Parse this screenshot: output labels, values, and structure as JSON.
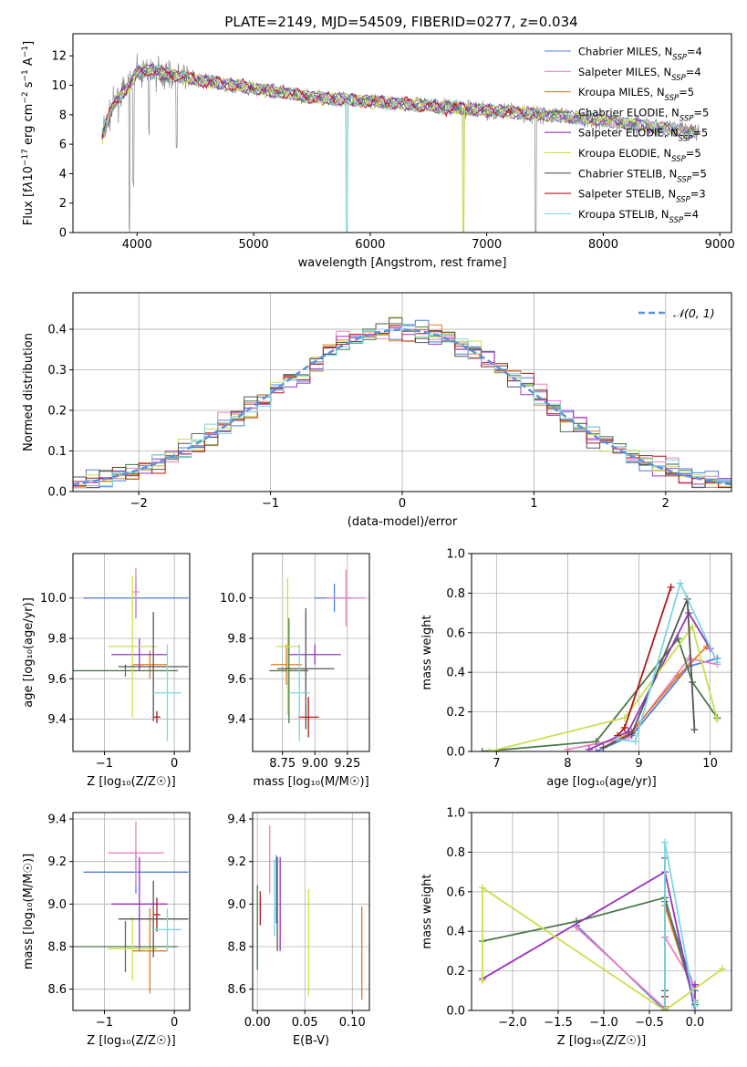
{
  "figure_title": "PLATE=2149, MJD=54509, FIBERID=0277, z=0.034",
  "colors": [
    "#4f7fe0",
    "#f07fbf",
    "#e07b2a",
    "#4a7a48",
    "#9a30c0",
    "#c9e04a",
    "#555555",
    "#b01616",
    "#79d8e2"
  ],
  "ssp_models": [
    {
      "name": "Chabrier MILES",
      "nssp": "4",
      "color": "#4f7fe0"
    },
    {
      "name": "Salpeter MILES",
      "nssp": "4",
      "color": "#f07fbf"
    },
    {
      "name": "Kroupa MILES",
      "nssp": "5",
      "color": "#e07b2a"
    },
    {
      "name": "Chabrier ELODIE",
      "nssp": "5",
      "color": "#4a7a48"
    },
    {
      "name": "Salpeter ELODIE",
      "nssp": "5",
      "color": "#9a30c0"
    },
    {
      "name": "Kroupa ELODIE",
      "nssp": "5",
      "color": "#c9e04a"
    },
    {
      "name": "Chabrier STELIB",
      "nssp": "5",
      "color": "#555555"
    },
    {
      "name": "Salpeter STELIB",
      "nssp": "3",
      "color": "#b01616"
    },
    {
      "name": "Kroupa STELIB",
      "nssp": "4",
      "color": "#79d8e2"
    }
  ],
  "chart_data": [
    {
      "id": "spectrum",
      "type": "line",
      "xlabel": "wavelength [Angstrom, rest frame]",
      "ylabel_html": "Flux [f<tspan font-style='italic'>λ</tspan>10<tspan baseline-shift='super' font-size='9'>−17</tspan> erg cm<tspan baseline-shift='super' font-size='9'>−2</tspan> s<tspan baseline-shift='super' font-size='9'>−1</tspan> A<tspan baseline-shift='super' font-size='9'>−1</tspan>]",
      "xlim": [
        3450,
        9100
      ],
      "ylim": [
        0,
        13.5
      ],
      "xticks": [
        4000,
        5000,
        6000,
        7000,
        8000,
        9000
      ],
      "yticks": [
        0,
        2,
        4,
        6,
        8,
        10,
        12
      ],
      "grid": false,
      "legend": "top-right",
      "continuum": {
        "x": [
          3700,
          3800,
          3900,
          4000,
          4100,
          4300,
          4500,
          5000,
          5500,
          6000,
          6500,
          7000,
          7500,
          8000,
          8500,
          8800
        ],
        "y": [
          6.5,
          8.8,
          9.6,
          10.9,
          11.0,
          10.7,
          10.4,
          9.8,
          9.2,
          8.9,
          8.6,
          8.3,
          8.0,
          7.6,
          7.1,
          6.8
        ]
      },
      "absorption_lines": [
        {
          "x": 3934,
          "y": 0
        },
        {
          "x": 3968,
          "y": 3.1
        },
        {
          "x": 4102,
          "y": 6.6
        },
        {
          "x": 4340,
          "y": 5.7
        },
        {
          "x": 5800,
          "y": 0
        },
        {
          "x": 6800,
          "y": 0
        },
        {
          "x": 7420,
          "y": 0
        }
      ]
    },
    {
      "id": "residuals",
      "type": "histogram",
      "xlabel": "(data-model)/error",
      "ylabel": "Normed distribution",
      "xlim": [
        -2.5,
        2.5
      ],
      "ylim": [
        0,
        0.49
      ],
      "xticks": [
        -2,
        -1,
        0,
        1,
        2
      ],
      "yticks": [
        0.0,
        0.1,
        0.2,
        0.3,
        0.4
      ],
      "grid": true,
      "legend": "top-right",
      "reference_curve": "N(0,1)",
      "bin_width": 0.1
    },
    {
      "id": "age_vs_Z",
      "type": "scatter",
      "xlabel": "Z [log₁₀(Z/Z☉)]",
      "ylabel": "age  [log₁₀(age/yr)]",
      "xlim": [
        -1.45,
        0.22
      ],
      "ylim": [
        9.24,
        10.22
      ],
      "xticks": [
        -1,
        0
      ],
      "yticks": [
        9.4,
        9.6,
        9.8,
        10.0
      ],
      "grid": true,
      "points": [
        {
          "x": -0.55,
          "y": 10.0,
          "xerr": 0.75,
          "yerr": 0.1,
          "color": "#4f7fe0"
        },
        {
          "x": -0.55,
          "y": 10.03,
          "xerr": 0.05,
          "yerr": 0.12,
          "color": "#f07fbf"
        },
        {
          "x": -0.35,
          "y": 9.67,
          "xerr": 0.25,
          "yerr": 0.07,
          "color": "#e07b2a"
        },
        {
          "x": -0.7,
          "y": 9.64,
          "xerr": 0.75,
          "yerr": 0.03,
          "color": "#4a7a48"
        },
        {
          "x": -0.5,
          "y": 9.72,
          "xerr": 0.4,
          "yerr": 0.08,
          "color": "#9a30c0"
        },
        {
          "x": -0.6,
          "y": 9.76,
          "xerr": 0.35,
          "yerr": 0.35,
          "color": "#c9e04a"
        },
        {
          "x": -0.3,
          "y": 9.66,
          "xerr": 0.5,
          "yerr": 0.27,
          "color": "#555555"
        },
        {
          "x": -0.25,
          "y": 9.41,
          "xerr": 0.05,
          "yerr": 0.03,
          "color": "#b01616"
        },
        {
          "x": -0.1,
          "y": 9.53,
          "xerr": 0.2,
          "yerr": 0.24,
          "color": "#79d8e2"
        }
      ]
    },
    {
      "id": "age_vs_mass",
      "type": "scatter",
      "xlabel": "mass [log₁₀(M/M☉)]",
      "ylabel": "",
      "xlim": [
        8.52,
        9.42
      ],
      "ylim": [
        9.24,
        10.22
      ],
      "xticks": [
        8.75,
        9.0,
        9.25
      ],
      "yticks": [
        9.4,
        9.6,
        9.8,
        10.0
      ],
      "grid": true,
      "points": [
        {
          "x": 9.15,
          "y": 10.0,
          "xerr": 0.15,
          "yerr": 0.07,
          "color": "#4f7fe0"
        },
        {
          "x": 9.24,
          "y": 10.0,
          "xerr": 0.15,
          "yerr": 0.14,
          "color": "#f07fbf"
        },
        {
          "x": 8.78,
          "y": 9.67,
          "xerr": 0.12,
          "yerr": 0.1,
          "color": "#e07b2a"
        },
        {
          "x": 8.8,
          "y": 9.64,
          "xerr": 0.15,
          "yerr": 0.26,
          "color": "#4a7a48"
        },
        {
          "x": 9.0,
          "y": 9.72,
          "xerr": 0.2,
          "yerr": 0.05,
          "color": "#9a30c0"
        },
        {
          "x": 8.79,
          "y": 9.76,
          "xerr": 0.09,
          "yerr": 0.34,
          "color": "#c9e04a"
        },
        {
          "x": 8.93,
          "y": 9.65,
          "xerr": 0.22,
          "yerr": 0.3,
          "color": "#555555"
        },
        {
          "x": 8.95,
          "y": 9.41,
          "xerr": 0.08,
          "yerr": 0.1,
          "color": "#b01616"
        },
        {
          "x": 8.88,
          "y": 9.53,
          "xerr": 0.08,
          "yerr": 0.24,
          "color": "#79d8e2"
        }
      ]
    },
    {
      "id": "massweight_vs_age",
      "type": "line",
      "xlabel": "age  [log₁₀(age/yr)]",
      "ylabel": "mass weight",
      "xlim": [
        6.65,
        10.3
      ],
      "ylim": [
        0,
        1.0
      ],
      "xticks": [
        7,
        8,
        9,
        10
      ],
      "yticks": [
        0.0,
        0.2,
        0.4,
        0.6,
        0.8,
        1.0
      ],
      "grid": true,
      "series": [
        {
          "color": "#4f7fe0",
          "x": [
            8.4,
            8.9,
            9.7,
            10.1
          ],
          "y": [
            0.0,
            0.08,
            0.43,
            0.47
          ]
        },
        {
          "color": "#f07fbf",
          "x": [
            8.0,
            8.85,
            9.7,
            10.1
          ],
          "y": [
            0.01,
            0.07,
            0.47,
            0.44
          ]
        },
        {
          "color": "#e07b2a",
          "x": [
            8.5,
            8.9,
            9.55,
            9.95
          ],
          "y": [
            0.02,
            0.1,
            0.38,
            0.53
          ]
        },
        {
          "color": "#4a7a48",
          "x": [
            6.8,
            8.4,
            9.55,
            9.75,
            10.1
          ],
          "y": [
            0.0,
            0.05,
            0.57,
            0.35,
            0.17
          ]
        },
        {
          "color": "#9a30c0",
          "x": [
            8.3,
            8.85,
            9.7,
            10.0
          ],
          "y": [
            0.01,
            0.1,
            0.7,
            0.52
          ]
        },
        {
          "color": "#c9e04a",
          "x": [
            6.9,
            8.8,
            9.75,
            10.1
          ],
          "y": [
            0.0,
            0.17,
            0.63,
            0.16
          ]
        },
        {
          "color": "#555555",
          "x": [
            8.5,
            8.9,
            9.68,
            9.78
          ],
          "y": [
            0.02,
            0.09,
            0.77,
            0.11
          ]
        },
        {
          "color": "#b01616",
          "x": [
            8.7,
            8.8,
            9.45
          ],
          "y": [
            0.08,
            0.12,
            0.83
          ]
        },
        {
          "color": "#79d8e2",
          "x": [
            8.7,
            8.95,
            9.58,
            10.1
          ],
          "y": [
            0.06,
            0.05,
            0.85,
            0.45
          ]
        }
      ]
    },
    {
      "id": "mass_vs_Z",
      "type": "scatter",
      "xlabel": "Z [log₁₀(Z/Z☉)]",
      "ylabel": "mass [log₁₀(M/M☉)]",
      "xlim": [
        -1.45,
        0.22
      ],
      "ylim": [
        8.5,
        9.43
      ],
      "xticks": [
        -1,
        0
      ],
      "yticks": [
        8.6,
        8.8,
        9.0,
        9.2,
        9.4
      ],
      "grid": true,
      "points": [
        {
          "x": -0.55,
          "y": 9.15,
          "xerr": 0.75,
          "yerr": 0.1,
          "color": "#4f7fe0"
        },
        {
          "x": -0.55,
          "y": 9.24,
          "xerr": 0.4,
          "yerr": 0.15,
          "color": "#f07fbf"
        },
        {
          "x": -0.35,
          "y": 8.78,
          "xerr": 0.25,
          "yerr": 0.2,
          "color": "#e07b2a"
        },
        {
          "x": -0.7,
          "y": 8.8,
          "xerr": 0.75,
          "yerr": 0.12,
          "color": "#4a7a48"
        },
        {
          "x": -0.5,
          "y": 9.0,
          "xerr": 0.4,
          "yerr": 0.22,
          "color": "#9a30c0"
        },
        {
          "x": -0.6,
          "y": 8.79,
          "xerr": 0.35,
          "yerr": 0.15,
          "color": "#c9e04a"
        },
        {
          "x": -0.3,
          "y": 8.93,
          "xerr": 0.5,
          "yerr": 0.18,
          "color": "#555555"
        },
        {
          "x": -0.25,
          "y": 8.95,
          "xerr": 0.05,
          "yerr": 0.08,
          "color": "#b01616"
        },
        {
          "x": -0.1,
          "y": 8.88,
          "xerr": 0.2,
          "yerr": 0.1,
          "color": "#79d8e2"
        }
      ]
    },
    {
      "id": "mass_vs_ebv",
      "type": "scatter",
      "xlabel": "E(B-V)",
      "ylabel": "",
      "xlim": [
        -0.005,
        0.118
      ],
      "ylim": [
        8.5,
        9.43
      ],
      "xticks": [
        0.0,
        0.05,
        0.1
      ],
      "yticks": [
        8.6,
        8.8,
        9.0,
        9.2,
        9.4
      ],
      "grid": true,
      "points": [
        {
          "x": 0.02,
          "y": 9.07,
          "yerr": 0.16,
          "color": "#4f7fe0"
        },
        {
          "x": 0.013,
          "y": 9.21,
          "yerr": 0.16,
          "color": "#f07fbf"
        },
        {
          "x": 0.11,
          "y": 8.77,
          "yerr": 0.22,
          "color": "#e07b2a"
        },
        {
          "x": 0.0,
          "y": 8.89,
          "yerr": 0.2,
          "color": "#4a7a48"
        },
        {
          "x": 0.024,
          "y": 9.0,
          "yerr": 0.22,
          "color": "#9a30c0"
        },
        {
          "x": 0.054,
          "y": 8.82,
          "yerr": 0.25,
          "color": "#c9e04a"
        },
        {
          "x": 0.021,
          "y": 9.0,
          "yerr": 0.22,
          "color": "#555555"
        },
        {
          "x": 0.003,
          "y": 8.98,
          "yerr": 0.08,
          "color": "#b01616"
        },
        {
          "x": 0.018,
          "y": 9.03,
          "yerr": 0.18,
          "color": "#79d8e2"
        }
      ]
    },
    {
      "id": "massweight_vs_Z",
      "type": "line",
      "xlabel": "Z [log₁₀(Z/Z☉)]",
      "ylabel": "mass weight",
      "xlim": [
        -2.45,
        0.4
      ],
      "ylim": [
        0,
        1.0
      ],
      "xticks": [
        -2.0,
        -1.5,
        -1.0,
        -0.5,
        0.0
      ],
      "yticks": [
        0.0,
        0.2,
        0.4,
        0.6,
        0.8,
        1.0
      ],
      "grid": true,
      "series": [
        {
          "color": "#4f7fe0",
          "x": [
            -1.3,
            -0.33,
            -0.33,
            0.0
          ],
          "y": [
            0.43,
            0.0,
            0.55,
            0.1
          ]
        },
        {
          "color": "#f07fbf",
          "x": [
            -1.3,
            -0.33,
            -0.33,
            0.0
          ],
          "y": [
            0.42,
            0.01,
            0.37,
            0.12
          ]
        },
        {
          "color": "#e07b2a",
          "x": [
            -0.33,
            -0.33,
            0.0
          ],
          "y": [
            0.02,
            0.53,
            0.05
          ]
        },
        {
          "color": "#4a7a48",
          "x": [
            -2.33,
            -1.3,
            -0.33,
            0.0
          ],
          "y": [
            0.35,
            0.45,
            0.57,
            0.03
          ]
        },
        {
          "color": "#9a30c0",
          "x": [
            -2.33,
            -0.33,
            0.0,
            0.0
          ],
          "y": [
            0.16,
            0.7,
            0.0,
            0.13
          ]
        },
        {
          "color": "#c9e04a",
          "x": [
            -2.33,
            -2.33,
            -0.33,
            0.3
          ],
          "y": [
            0.15,
            0.62,
            0.0,
            0.21
          ]
        },
        {
          "color": "#555555",
          "x": [
            -0.33,
            -0.33,
            -0.33
          ],
          "y": [
            0.0,
            0.77,
            0.1
          ]
        },
        {
          "color": "#b01616",
          "x": [
            -0.33,
            -0.33
          ],
          "y": [
            0.07,
            0.0
          ]
        },
        {
          "color": "#79d8e2",
          "x": [
            -0.33,
            -0.33,
            0.0,
            0.0
          ],
          "y": [
            0.0,
            0.85,
            0.02,
            0.04
          ]
        }
      ]
    }
  ]
}
